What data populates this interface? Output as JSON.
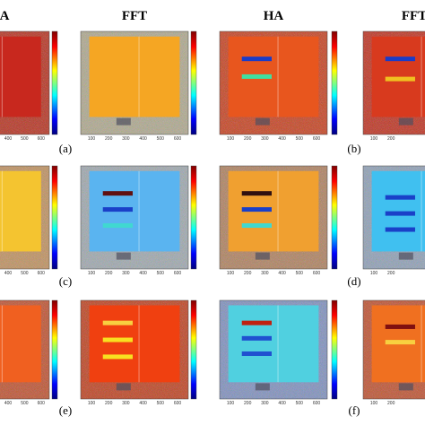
{
  "headers": [
    "A",
    "FFT",
    "HA",
    "FFT"
  ],
  "panel_labels": [
    "(a)",
    "(b)",
    "(c)",
    "(d)",
    "(e)",
    "(f)"
  ],
  "x_ticks": [
    [
      "400",
      "500",
      "600"
    ],
    [
      "100",
      "200",
      "300",
      "400",
      "500",
      "600"
    ],
    [
      "100",
      "200",
      "300",
      "400",
      "500",
      "600"
    ],
    [
      "100",
      "200"
    ]
  ]
}
